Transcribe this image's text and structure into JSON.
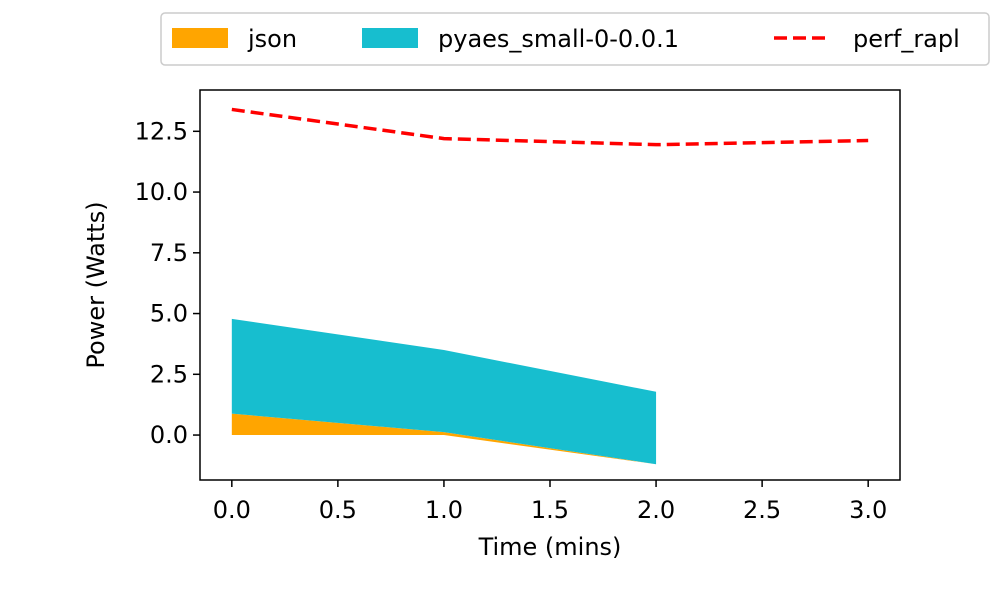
{
  "chart_data": {
    "type": "area",
    "title": "",
    "xlabel": "Time (mins)",
    "ylabel": "Power (Watts)",
    "xlim": [
      -0.15,
      3.15
    ],
    "ylim": [
      -1.85,
      14.2
    ],
    "xticks": [
      0.0,
      0.5,
      1.0,
      1.5,
      2.0,
      2.5,
      3.0
    ],
    "xtick_labels": [
      "0.0",
      "0.5",
      "1.0",
      "1.5",
      "2.0",
      "2.5",
      "3.0"
    ],
    "yticks": [
      0.0,
      2.5,
      5.0,
      7.5,
      10.0,
      12.5
    ],
    "ytick_labels": [
      "0.0",
      "2.5",
      "5.0",
      "7.5",
      "10.0",
      "12.5"
    ],
    "grid": false,
    "legend_position": "top (outside, above plot)",
    "series": [
      {
        "name": "json",
        "kind": "stacked-area",
        "color": "#ffa500",
        "x": [
          0.0,
          1.0,
          2.0
        ],
        "lower": [
          0.0,
          0.0,
          -1.2
        ],
        "upper": [
          0.88,
          0.12,
          -1.2
        ]
      },
      {
        "name": "pyaes_small-0-0.0.1",
        "kind": "stacked-area",
        "color": "#17becf",
        "x": [
          0.0,
          1.0,
          2.0
        ],
        "lower": [
          0.88,
          0.12,
          -1.2
        ],
        "upper": [
          4.78,
          3.5,
          1.78
        ]
      },
      {
        "name": "perf_rapl",
        "kind": "dashed-line",
        "color": "#ff0000",
        "x": [
          0.0,
          1.0,
          2.0,
          3.0
        ],
        "y": [
          13.4,
          12.2,
          11.95,
          12.12
        ]
      }
    ]
  }
}
